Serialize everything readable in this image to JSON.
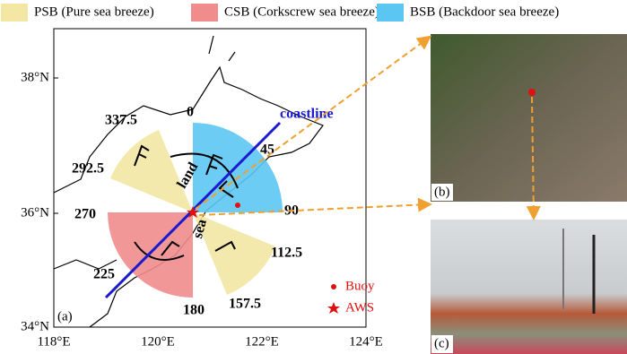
{
  "legend": {
    "items": [
      "PSB (Pure sea breeze)",
      "CSB (Corkscrew sea breeze)",
      "BSB (Backdoor sea breeze)"
    ]
  },
  "map": {
    "panel": "(a)",
    "lat_labels": [
      "38°N",
      "36°N",
      "34°N"
    ],
    "lon_labels": [
      "118°E",
      "120°E",
      "122°E",
      "124°E"
    ],
    "directions": [
      0,
      45,
      90,
      112.5,
      157.5,
      180,
      225,
      270,
      292.5,
      337.5
    ],
    "coastline": "coastline",
    "land": "land",
    "sea": "sea",
    "buoy": "Buoy",
    "aws": "AWS"
  },
  "photos": {
    "b": "(b)",
    "c": "(c)"
  }
}
